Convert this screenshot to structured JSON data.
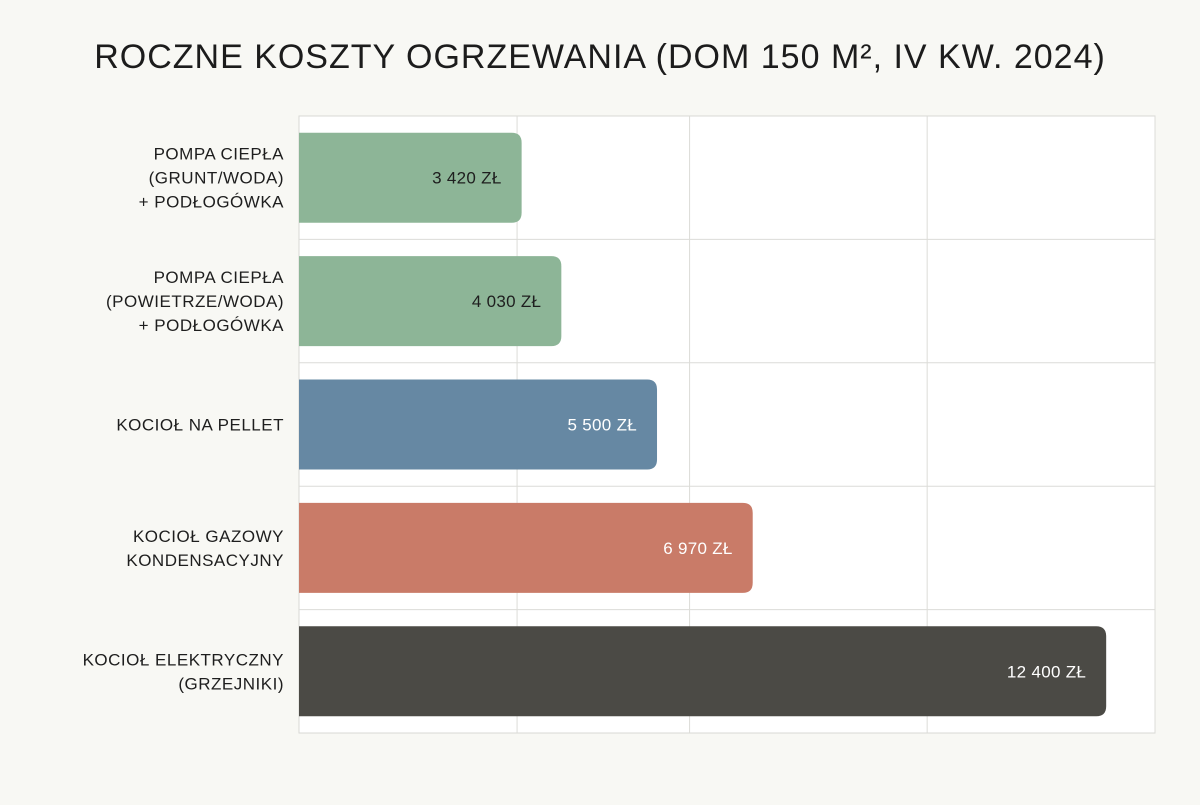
{
  "chart_data": {
    "type": "bar",
    "orientation": "horizontal",
    "title": "ROCZNE KOSZTY OGRZEWANIA (DOM 150 M², IV KW. 2024)",
    "xlabel": "",
    "ylabel": "",
    "categories": [
      "POMPA CIEPŁA (GRUNT/WODA) + PODŁOGÓWKA",
      "POMPA CIEPŁA (POWIETRZE/WODA) + PODŁOGÓWKA",
      "KOCIOŁ NA PELLET",
      "KOCIOŁ GAZOWY KONDENSACYJNY",
      "KOCIOŁ ELEKTRYCZNY (GRZEJNIKI)"
    ],
    "category_lines": [
      [
        "POMPA CIEPŁA",
        "(GRUNT/WODA)",
        "+ PODŁOGÓWKA"
      ],
      [
        "POMPA CIEPŁA",
        "(POWIETRZE/WODA)",
        "+ PODŁOGÓWKA"
      ],
      [
        "KOCIOŁ NA PELLET"
      ],
      [
        "KOCIOŁ GAZOWY",
        "KONDENSACYJNY"
      ],
      [
        "KOCIOŁ ELEKTRYCZNY",
        "(GRZEJNIKI)"
      ]
    ],
    "values": [
      3420,
      4030,
      5500,
      6970,
      12400
    ],
    "value_labels": [
      "3 420 ZŁ",
      "4 030 ZŁ",
      "5 500 ZŁ",
      "6 970 ZŁ",
      "12 400 ZŁ"
    ],
    "colors": [
      "#8db597",
      "#8db597",
      "#6688a3",
      "#c97b68",
      "#4b4a45"
    ],
    "value_label_colors": [
      "#1e1e1e",
      "#1e1e1e",
      "#ffffff",
      "#ffffff",
      "#ffffff"
    ],
    "xlim": [
      0,
      13150
    ],
    "gridlines": [
      3350,
      6000,
      9650,
      13150
    ],
    "grid": true,
    "legend": "none"
  }
}
